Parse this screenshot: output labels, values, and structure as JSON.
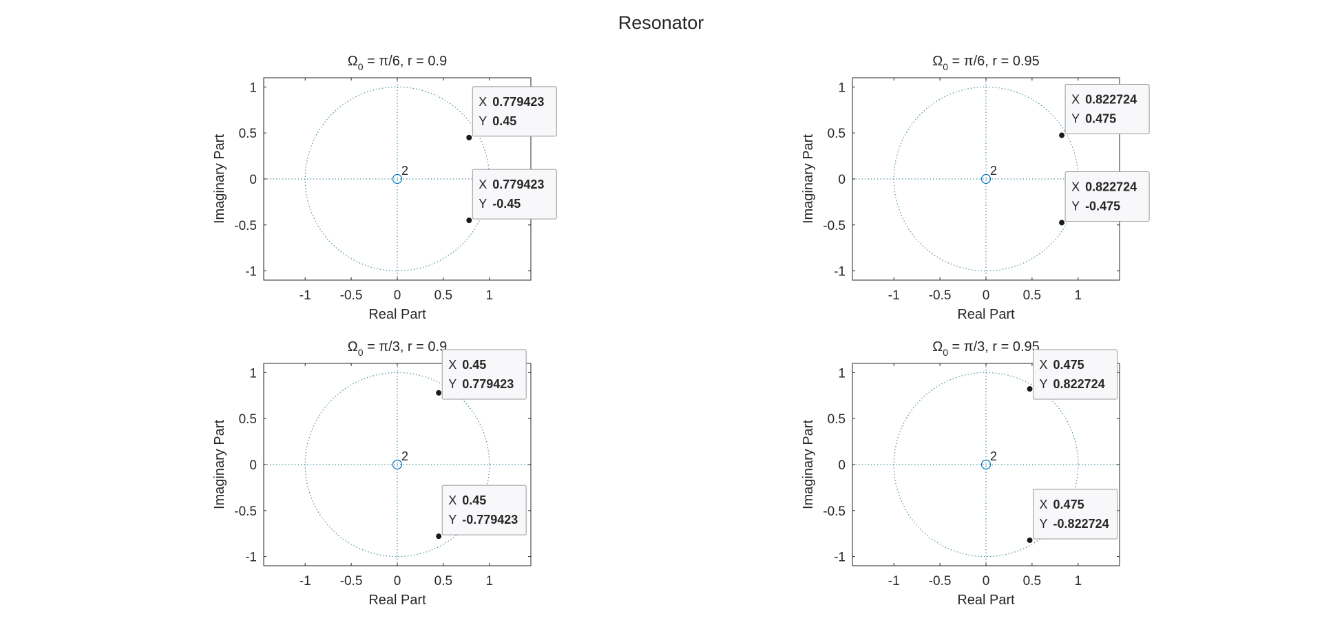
{
  "figure": {
    "title": "Resonator"
  },
  "chart_data": [
    {
      "type": "scatter",
      "subtype": "pole-zero plot",
      "title": {
        "prefix": "Ω",
        "sub": "0",
        "rest": " = π/6, r = 0.9"
      },
      "xlabel": "Real Part",
      "ylabel": "Imaginary Part",
      "xlim": [
        -1.45,
        1.45
      ],
      "ylim": [
        -1.1,
        1.1
      ],
      "xticks": [
        -1,
        -0.5,
        0,
        0.5,
        1
      ],
      "xtick_labels": [
        "-1",
        "-0.5",
        "0",
        "0.5",
        "1"
      ],
      "yticks": [
        -1,
        -0.5,
        0,
        0.5,
        1
      ],
      "ytick_labels": [
        "-1",
        "-0.5",
        "0",
        "0.5",
        "1"
      ],
      "unit_circle": true,
      "zeros": [
        {
          "x": 0,
          "y": 0,
          "multiplicity": "2"
        }
      ],
      "poles": [
        {
          "x": 0.779423,
          "y": 0.45,
          "tip": {
            "x_label": "X",
            "y_label": "Y",
            "x_text": "0.779423",
            "y_text": "0.45"
          }
        },
        {
          "x": 0.779423,
          "y": -0.45,
          "tip": {
            "x_label": "X",
            "y_label": "Y",
            "x_text": "0.779423",
            "y_text": "-0.45"
          }
        }
      ]
    },
    {
      "type": "scatter",
      "subtype": "pole-zero plot",
      "title": {
        "prefix": "Ω",
        "sub": "0",
        "rest": " = π/6, r = 0.95"
      },
      "xlabel": "Real Part",
      "ylabel": "Imaginary Part",
      "xlim": [
        -1.45,
        1.45
      ],
      "ylim": [
        -1.1,
        1.1
      ],
      "xticks": [
        -1,
        -0.5,
        0,
        0.5,
        1
      ],
      "xtick_labels": [
        "-1",
        "-0.5",
        "0",
        "0.5",
        "1"
      ],
      "yticks": [
        -1,
        -0.5,
        0,
        0.5,
        1
      ],
      "ytick_labels": [
        "-1",
        "-0.5",
        "0",
        "0.5",
        "1"
      ],
      "unit_circle": true,
      "zeros": [
        {
          "x": 0,
          "y": 0,
          "multiplicity": "2"
        }
      ],
      "poles": [
        {
          "x": 0.822724,
          "y": 0.475,
          "tip": {
            "x_label": "X",
            "y_label": "Y",
            "x_text": "0.822724",
            "y_text": "0.475"
          }
        },
        {
          "x": 0.822724,
          "y": -0.475,
          "tip": {
            "x_label": "X",
            "y_label": "Y",
            "x_text": "0.822724",
            "y_text": "-0.475"
          }
        }
      ]
    },
    {
      "type": "scatter",
      "subtype": "pole-zero plot",
      "title": {
        "prefix": "Ω",
        "sub": "0",
        "rest": " = π/3, r = 0.9"
      },
      "xlabel": "Real Part",
      "ylabel": "Imaginary Part",
      "xlim": [
        -1.45,
        1.45
      ],
      "ylim": [
        -1.1,
        1.1
      ],
      "xticks": [
        -1,
        -0.5,
        0,
        0.5,
        1
      ],
      "xtick_labels": [
        "-1",
        "-0.5",
        "0",
        "0.5",
        "1"
      ],
      "yticks": [
        -1,
        -0.5,
        0,
        0.5,
        1
      ],
      "ytick_labels": [
        "-1",
        "-0.5",
        "0",
        "0.5",
        "1"
      ],
      "unit_circle": true,
      "zeros": [
        {
          "x": 0,
          "y": 0,
          "multiplicity": "2"
        }
      ],
      "poles": [
        {
          "x": 0.45,
          "y": 0.779423,
          "tip": {
            "x_label": "X",
            "y_label": "Y",
            "x_text": "0.45",
            "y_text": "0.779423"
          }
        },
        {
          "x": 0.45,
          "y": -0.779423,
          "tip": {
            "x_label": "X",
            "y_label": "Y",
            "x_text": "0.45",
            "y_text": "-0.779423"
          }
        }
      ]
    },
    {
      "type": "scatter",
      "subtype": "pole-zero plot",
      "title": {
        "prefix": "Ω",
        "sub": "0",
        "rest": " = π/3, r = 0.95"
      },
      "xlabel": "Real Part",
      "ylabel": "Imaginary Part",
      "xlim": [
        -1.45,
        1.45
      ],
      "ylim": [
        -1.1,
        1.1
      ],
      "xticks": [
        -1,
        -0.5,
        0,
        0.5,
        1
      ],
      "xtick_labels": [
        "-1",
        "-0.5",
        "0",
        "0.5",
        "1"
      ],
      "yticks": [
        -1,
        -0.5,
        0,
        0.5,
        1
      ],
      "ytick_labels": [
        "-1",
        "-0.5",
        "0",
        "0.5",
        "1"
      ],
      "unit_circle": true,
      "zeros": [
        {
          "x": 0,
          "y": 0,
          "multiplicity": "2"
        }
      ],
      "poles": [
        {
          "x": 0.475,
          "y": 0.822724,
          "tip": {
            "x_label": "X",
            "y_label": "Y",
            "x_text": "0.475",
            "y_text": "0.822724"
          }
        },
        {
          "x": 0.475,
          "y": -0.822724,
          "tip": {
            "x_label": "X",
            "y_label": "Y",
            "x_text": "0.475",
            "y_text": "-0.822724"
          }
        }
      ]
    }
  ],
  "colors": {
    "axis": "#262626",
    "dotted_guides": "#4a8f9f",
    "zero_marker": "#0072bd",
    "pole_marker": "#1a1a1a",
    "tip_value": "#1493e6",
    "tip_label": "#262626",
    "tip_border": "#9a9a9a",
    "tip_background": "#f8f8fb"
  }
}
